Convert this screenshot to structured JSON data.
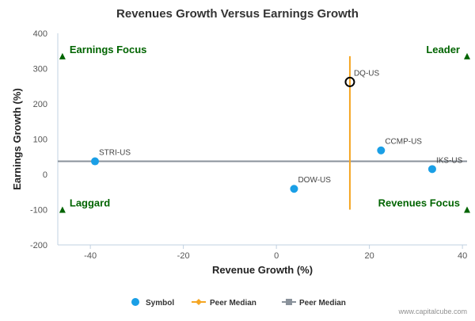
{
  "chart_data": {
    "type": "scatter",
    "title": "Revenues Growth Versus Earnings Growth",
    "xlabel": "Revenue Growth (%)",
    "ylabel": "Earnings Growth (%)",
    "xlim": [
      -47,
      41
    ],
    "ylim": [
      -200,
      400
    ],
    "x_ticks": [
      -40,
      -20,
      0,
      20,
      40
    ],
    "y_ticks": [
      -200,
      -100,
      0,
      100,
      200,
      300,
      400
    ],
    "grid": false,
    "legend_position": "bottom",
    "series": [
      {
        "name": "Symbol",
        "type": "scatter",
        "color": "#1a9fe6",
        "points": [
          {
            "label": "STRI-US",
            "x": -39,
            "y": 37
          },
          {
            "label": "DOW-US",
            "x": 3.8,
            "y": -41
          },
          {
            "label": "CCMP-US",
            "x": 22.5,
            "y": 68
          },
          {
            "label": "IKS-US",
            "x": 33.5,
            "y": 15
          }
        ],
        "highlight": {
          "label": "DQ-US",
          "x": 15.8,
          "y": 262
        }
      },
      {
        "name": "Peer Median",
        "type": "vertical-line",
        "color": "#f5a623",
        "x": 15.8,
        "y_range": [
          -100,
          335
        ]
      },
      {
        "name": "Peer Median",
        "type": "horizontal-line",
        "color": "#8a929b",
        "y": 37,
        "x_range": [
          -47,
          41
        ]
      }
    ],
    "quadrants": [
      {
        "label": "Earnings Focus",
        "x": -46,
        "y": 335,
        "anchor": "start"
      },
      {
        "label": "Leader",
        "x": 41,
        "y": 335,
        "anchor": "end"
      },
      {
        "label": "Laggard",
        "x": -46,
        "y": -100,
        "anchor": "start"
      },
      {
        "label": "Revenues Focus",
        "x": 41,
        "y": -100,
        "anchor": "end"
      }
    ],
    "quadrant_color": "#006400",
    "credit": "www.capitalcube.com"
  }
}
